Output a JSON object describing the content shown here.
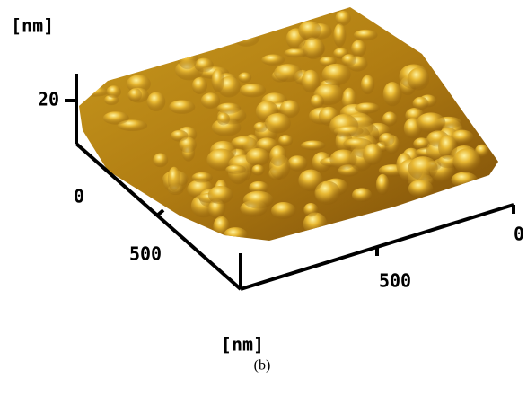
{
  "figure": {
    "z_axis": {
      "unit": "[nm]",
      "tick": "20"
    },
    "left_axis": {
      "ticks": [
        "0",
        "500"
      ]
    },
    "right_axis": {
      "ticks": [
        "0",
        "500"
      ],
      "unit": "[nm]"
    },
    "caption": "(b)"
  }
}
